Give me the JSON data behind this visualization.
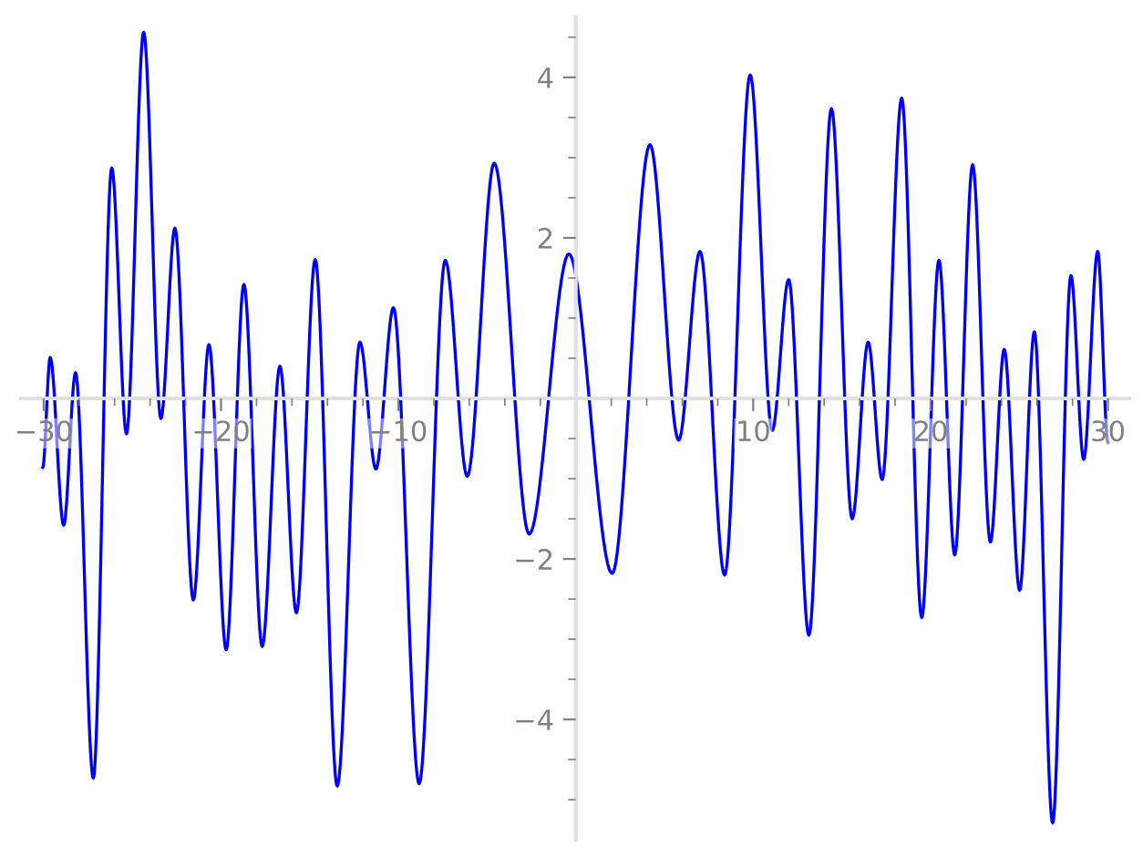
{
  "chart_data": {
    "type": "line",
    "x": [
      -30.05,
      -29.63,
      -28.87,
      -28.2,
      -27.2,
      -26.16,
      -25.33,
      -24.36,
      -23.39,
      -22.6,
      -21.56,
      -20.68,
      -19.71,
      -18.71,
      -17.68,
      -16.68,
      -15.75,
      -14.69,
      -13.45,
      -12.17,
      -11.27,
      -10.28,
      -8.83,
      -7.36,
      -6.12,
      -4.6,
      -2.63,
      -0.39,
      2.05,
      4.18,
      5.8,
      7.0,
      8.39,
      9.83,
      11.07,
      12.0,
      13.14,
      14.41,
      15.58,
      16.48,
      17.27,
      18.37,
      19.5,
      20.47,
      21.36,
      22.37,
      23.37,
      24.15,
      25.02,
      25.85,
      26.88,
      27.91,
      28.63,
      29.42,
      30.0
    ],
    "series": [
      {
        "color": "#0000ff",
        "values": [
          -0.86,
          0.51,
          -1.58,
          0.32,
          -4.73,
          2.87,
          -0.44,
          4.56,
          -0.25,
          2.12,
          -2.51,
          0.67,
          -3.13,
          1.42,
          -3.09,
          0.4,
          -2.67,
          1.73,
          -4.83,
          0.7,
          -0.88,
          1.13,
          -4.8,
          1.72,
          -0.97,
          2.93,
          -1.69,
          1.8,
          -2.18,
          3.16,
          -0.52,
          1.83,
          -2.2,
          4.03,
          -0.4,
          1.48,
          -2.95,
          3.61,
          -1.5,
          0.7,
          -1.01,
          3.74,
          -2.73,
          1.72,
          -1.95,
          2.91,
          -1.79,
          0.61,
          -2.39,
          0.83,
          -5.29,
          1.53,
          -0.76,
          1.83,
          -0.55
        ]
      }
    ],
    "xlim": [
      -31.3,
      31.2
    ],
    "ylim": [
      -5.5,
      4.75
    ],
    "xticks": [
      -30,
      {
        "value": -28,
        "label": null
      },
      {
        "value": -26,
        "label": null
      },
      {
        "value": -24,
        "label": null
      },
      {
        "value": -22,
        "label": null
      },
      -20,
      {
        "value": -18,
        "label": null
      },
      {
        "value": -16,
        "label": null
      },
      {
        "value": -14,
        "label": null
      },
      {
        "value": -12,
        "label": null
      },
      -10,
      {
        "value": -8,
        "label": null
      },
      {
        "value": -6,
        "label": null
      },
      {
        "value": -4,
        "label": null
      },
      {
        "value": -2,
        "label": null
      },
      {
        "value": 2,
        "label": null
      },
      {
        "value": 4,
        "label": null
      },
      {
        "value": 6,
        "label": null
      },
      {
        "value": 8,
        "label": null
      },
      10,
      {
        "value": 12,
        "label": null
      },
      {
        "value": 14,
        "label": null
      },
      {
        "value": 16,
        "label": null
      },
      {
        "value": 18,
        "label": null
      },
      20,
      {
        "value": 22,
        "label": null
      },
      {
        "value": 24,
        "label": null
      },
      {
        "value": 26,
        "label": null
      },
      {
        "value": 28,
        "label": null
      },
      30
    ],
    "yticks": [
      {
        "value": -5,
        "label": null
      },
      {
        "value": -4.5,
        "label": null
      },
      -4,
      {
        "value": -3.5,
        "label": null
      },
      {
        "value": -3,
        "label": null
      },
      {
        "value": -2.5,
        "label": null
      },
      -2,
      {
        "value": -1.5,
        "label": null
      },
      {
        "value": -1,
        "label": null
      },
      {
        "value": -0.5,
        "label": null
      },
      {
        "value": 0.5,
        "label": null
      },
      {
        "value": 1,
        "label": null
      },
      {
        "value": 1.5,
        "label": null
      },
      2,
      {
        "value": 2.5,
        "label": null
      },
      {
        "value": 3,
        "label": null
      },
      {
        "value": 3.5,
        "label": null
      },
      4,
      {
        "value": 4.5,
        "label": null
      }
    ],
    "grid": false,
    "legend": false,
    "marker": "none",
    "line_style": "solid"
  }
}
